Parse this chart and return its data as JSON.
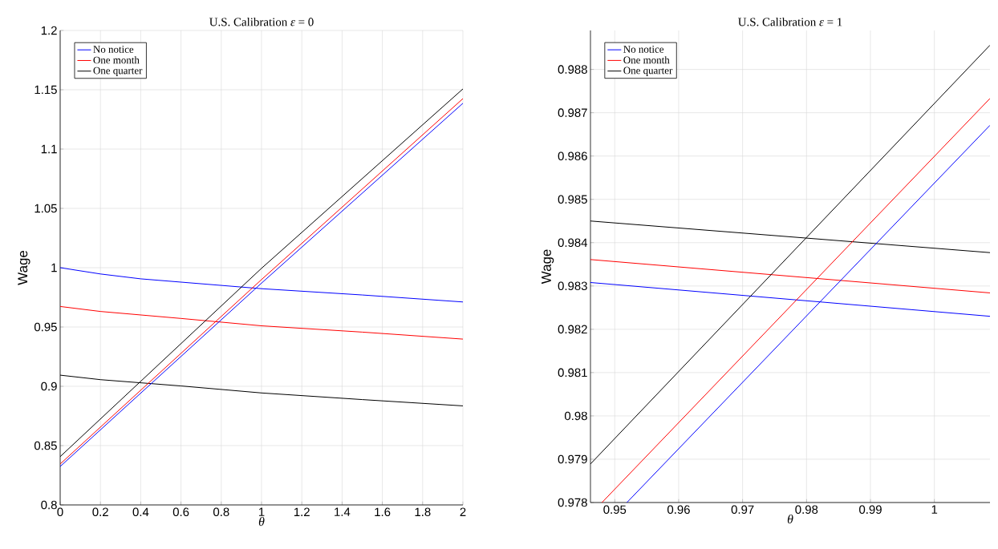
{
  "chart_data": [
    {
      "type": "line",
      "title": "U.S. Calibration *ε* = 0",
      "xlabel": "θ",
      "ylabel": "Wage",
      "xlim": [
        0,
        2
      ],
      "ylim": [
        0.8,
        1.2
      ],
      "xticks": [
        0,
        0.2,
        0.4,
        0.6,
        0.8,
        1,
        1.2,
        1.4,
        1.6,
        1.8,
        2
      ],
      "yticks": [
        0.8,
        0.85,
        0.9,
        0.95,
        1,
        1.05,
        1.1,
        1.15,
        1.2
      ],
      "grid": true,
      "legend": "top left",
      "marker": "none",
      "series": [
        {
          "name": "No notice",
          "color": "#0000ff",
          "x": [
            0,
            0.2,
            0.4,
            1,
            1.5,
            2
          ],
          "values": [
            1.0,
            0.9947,
            0.9906,
            0.9823,
            0.977,
            0.9711
          ]
        },
        {
          "name": "One month",
          "color": "#ff0000",
          "x": [
            0,
            0.2,
            0.6,
            1,
            1.5,
            2
          ],
          "values": [
            0.9673,
            0.9631,
            0.9572,
            0.951,
            0.9457,
            0.9398
          ]
        },
        {
          "name": "One quarter",
          "color": "#000000",
          "x": [
            0,
            0.2,
            0.6,
            1,
            1.5,
            2
          ],
          "values": [
            0.9094,
            0.9056,
            0.9003,
            0.8944,
            0.8888,
            0.8835
          ]
        },
        {
          "color": "#0000ff",
          "x": [
            0,
            1,
            2
          ],
          "values": [
            0.8324,
            0.987,
            1.1386
          ]
        },
        {
          "color": "#ff0000",
          "x": [
            0,
            1,
            2
          ],
          "values": [
            0.8345,
            0.99,
            1.1425
          ]
        },
        {
          "color": "#000000",
          "x": [
            0,
            1,
            2
          ],
          "values": [
            0.8407,
            0.9995,
            1.1507
          ]
        }
      ]
    },
    {
      "type": "line",
      "title": "U.S. Calibration *ε* = 1",
      "xlabel": "θ",
      "ylabel": "Wage",
      "xlim": [
        0.9462,
        1.0087
      ],
      "ylim": [
        0.978,
        0.9889
      ],
      "xticks": [
        0.95,
        0.96,
        0.97,
        0.98,
        0.99,
        1
      ],
      "yticks": [
        0.978,
        0.979,
        0.98,
        0.981,
        0.982,
        0.983,
        0.984,
        0.985,
        0.986,
        0.987,
        0.988
      ],
      "grid": true,
      "legend": "top left",
      "marker": "none",
      "series": [
        {
          "name": "No notice",
          "color": "#0000ff",
          "x": [
            0.9462,
            1.0087
          ],
          "values": [
            0.98308,
            0.9823
          ]
        },
        {
          "name": "One month",
          "color": "#ff0000",
          "x": [
            0.9462,
            1.0087
          ],
          "values": [
            0.98361,
            0.98284
          ]
        },
        {
          "name": "One quarter",
          "color": "#000000",
          "x": [
            0.9462,
            1.0087
          ],
          "values": [
            0.9845,
            0.98377
          ]
        },
        {
          "color": "#0000ff",
          "x": [
            0.9519,
            1.0087
          ],
          "values": [
            0.978,
            0.98671
          ]
        },
        {
          "color": "#ff0000",
          "x": [
            0.948,
            1.0087
          ],
          "values": [
            0.978,
            0.98733
          ]
        },
        {
          "color": "#000000",
          "x": [
            0.9462,
            1.0087
          ],
          "values": [
            0.97889,
            0.98856
          ]
        }
      ]
    }
  ]
}
